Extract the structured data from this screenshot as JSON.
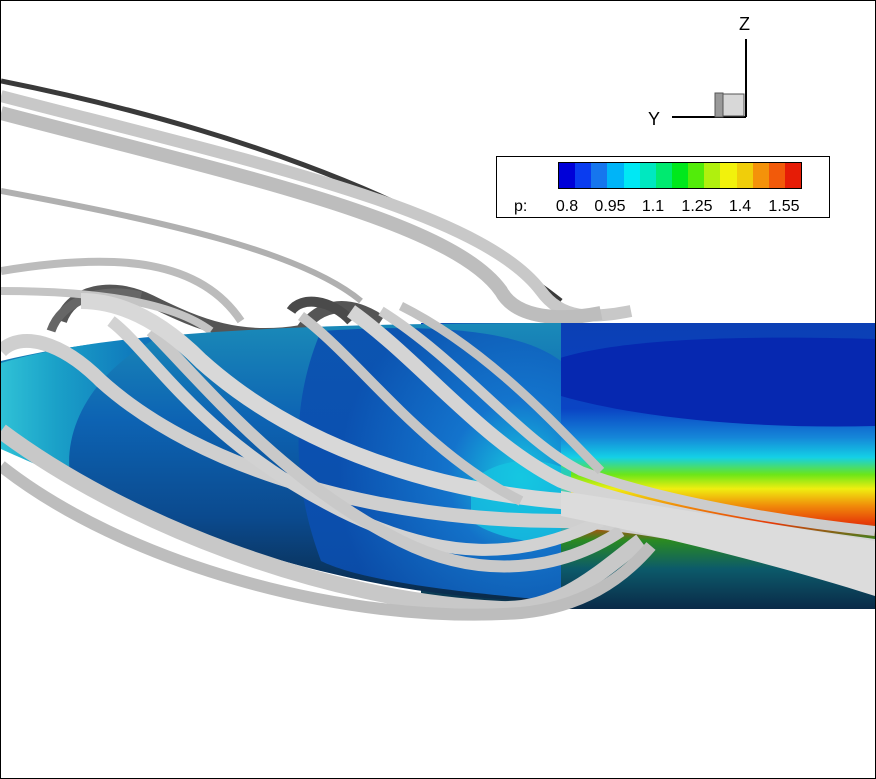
{
  "view": {
    "axes": {
      "z_label": "Z",
      "y_label": "Y"
    },
    "legend": {
      "variable_label": "p:",
      "ticks": [
        "0.8",
        "0.95",
        "1.1",
        "1.25",
        "1.4",
        "1.55"
      ],
      "tick_values": [
        0.8,
        0.95,
        1.1,
        1.25,
        1.4,
        1.55
      ],
      "range": [
        0.725,
        1.625
      ],
      "colors": [
        "#0000d8",
        "#0a3cf0",
        "#1676ee",
        "#00b4f8",
        "#00e8f4",
        "#00e8c0",
        "#00ea70",
        "#00e81c",
        "#52ec0a",
        "#b0f00e",
        "#f2f20c",
        "#f0ce0a",
        "#f4920a",
        "#f25a0a",
        "#e61c06"
      ]
    }
  }
}
